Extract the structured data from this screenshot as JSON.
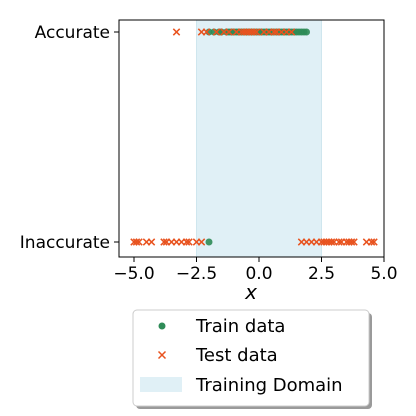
{
  "chart_data": {
    "type": "scatter",
    "xlabel": "x",
    "xlim": [
      -5.6,
      5.0
    ],
    "ylim": [
      0,
      1
    ],
    "x_ticks": [
      -5.0,
      -2.5,
      0.0,
      2.5,
      5.0
    ],
    "x_tick_labels": [
      "−5.0",
      "−2.5",
      "0.0",
      "2.5",
      "5.0"
    ],
    "y_tick_labels": [
      "Inaccurate",
      "Accurate"
    ],
    "training_domain": [
      -2.5,
      2.5
    ],
    "legend_location": "below",
    "series": [
      {
        "name": "Train data",
        "marker": "circle",
        "color": "#2e8b57",
        "accurate": [
          -2.0,
          -1.8,
          -1.6,
          -1.5,
          -1.3,
          -1.2,
          -1.1,
          -1.0,
          -0.9,
          -0.8,
          -0.7,
          -0.6,
          -0.5,
          -0.4,
          -0.3,
          -0.2,
          -0.1,
          0.0,
          0.1,
          0.2,
          0.3,
          0.4,
          0.5,
          0.6,
          0.7,
          0.8,
          0.9,
          1.0,
          1.1,
          1.2,
          1.3,
          1.4,
          1.5,
          1.6,
          1.7,
          1.8,
          1.9
        ],
        "inaccurate": [
          -2.0
        ]
      },
      {
        "name": "Test data",
        "marker": "x",
        "color": "#e8531f",
        "accurate": [
          -3.3,
          -2.3,
          -2.1,
          -1.7,
          -1.4,
          -1.2,
          -0.9,
          -0.7,
          -0.6,
          -0.5,
          -0.4,
          -0.3,
          -0.2,
          -0.1,
          0.2,
          0.4,
          0.6,
          0.7,
          0.9,
          1.1,
          1.3
        ],
        "inaccurate": [
          -5.0,
          -4.9,
          -4.8,
          -4.5,
          -4.3,
          -3.8,
          -3.7,
          -3.5,
          -3.3,
          -3.1,
          -2.9,
          -2.8,
          -2.5,
          -2.3,
          1.7,
          1.9,
          2.1,
          2.3,
          2.5,
          2.6,
          2.7,
          2.8,
          2.9,
          3.0,
          3.2,
          3.3,
          3.5,
          3.6,
          3.7,
          3.8,
          4.3,
          4.5,
          4.6
        ]
      }
    ],
    "legend": [
      "Train data",
      "Test data",
      "Training Domain"
    ],
    "colors": {
      "domain_fill": "#e0f0f6"
    }
  }
}
